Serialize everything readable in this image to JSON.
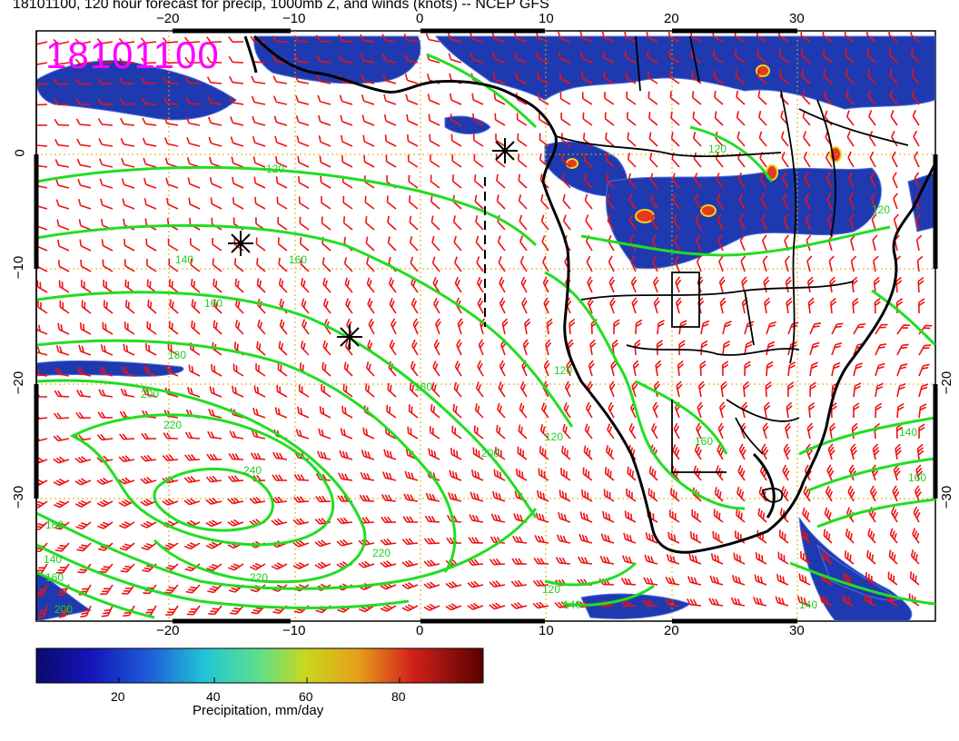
{
  "header": {
    "title": "18101100, 120 hour forecast for precip, 1000mb Z, and winds (knots) -- NCEP GFS",
    "date_stamp": "18101100"
  },
  "map": {
    "lon_labels_top": [
      "−20",
      "−10",
      "0",
      "10",
      "20",
      "30"
    ],
    "lon_labels_bottom": [
      "−20",
      "−10",
      "0",
      "10",
      "20",
      "30"
    ],
    "lat_labels_left": [
      "0",
      "−10",
      "−20",
      "−30"
    ],
    "lat_labels_right": [
      "−20",
      "−30"
    ],
    "contour_labels": [
      "120",
      "140",
      "160",
      "180",
      "200",
      "220",
      "240",
      "220",
      "200",
      "180",
      "160",
      "140",
      "120",
      "120",
      "140",
      "160",
      "120",
      "140",
      "160",
      "180",
      "200",
      "220",
      "120",
      "140",
      "160",
      "120"
    ],
    "colors": {
      "contour": "#22dd22",
      "wind_barb": "#ee1111",
      "grid": "#ddaa00",
      "coast": "#000000",
      "date_stamp": "#ff00ff"
    }
  },
  "colorbar": {
    "ticks": [
      "20",
      "40",
      "60",
      "80"
    ],
    "title": "Precipitation, mm/day"
  }
}
